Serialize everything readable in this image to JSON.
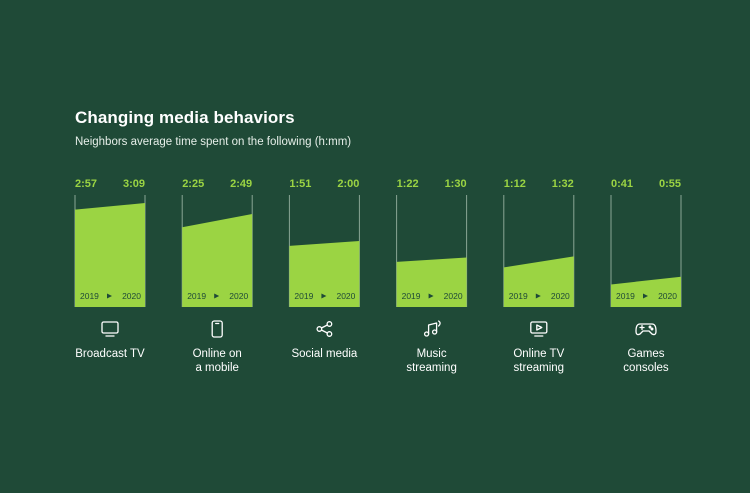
{
  "title": "Changing media behaviors",
  "subtitle": "Neighbors average time spent on the following (h:mm)",
  "colors": {
    "background": "#1f4a37",
    "accent": "#9bd443",
    "text": "#ffffff"
  },
  "chart_data": {
    "type": "area",
    "title": "Changing media behaviors",
    "subtitle": "Neighbors average time spent on the following (h:mm)",
    "unit": "h:mm",
    "x": [
      "2019",
      "2020"
    ],
    "ylim": [
      0,
      3.3
    ],
    "categories": [
      {
        "name": "Broadcast TV",
        "label_lines": [
          "Broadcast TV"
        ],
        "icon": "tv-icon",
        "v2019": "2:57",
        "v2020": "3:09",
        "h2019": 2.95,
        "h2020": 3.15
      },
      {
        "name": "Online on a mobile",
        "label_lines": [
          "Online on",
          "a mobile"
        ],
        "icon": "mobile-phone-icon",
        "v2019": "2:25",
        "v2020": "2:49",
        "h2019": 2.4167,
        "h2020": 2.8167
      },
      {
        "name": "Social media",
        "label_lines": [
          "Social media"
        ],
        "icon": "share-icon",
        "v2019": "1:51",
        "v2020": "2:00",
        "h2019": 1.85,
        "h2020": 2.0
      },
      {
        "name": "Music streaming",
        "label_lines": [
          "Music",
          "streaming"
        ],
        "icon": "music-note-icon",
        "v2019": "1:22",
        "v2020": "1:30",
        "h2019": 1.3667,
        "h2020": 1.5
      },
      {
        "name": "Online TV streaming",
        "label_lines": [
          "Online TV",
          "streaming"
        ],
        "icon": "play-screen-icon",
        "v2019": "1:12",
        "v2020": "1:32",
        "h2019": 1.2,
        "h2020": 1.5333
      },
      {
        "name": "Games consoles",
        "label_lines": [
          "Games",
          "consoles"
        ],
        "icon": "gamepad-icon",
        "v2019": "0:41",
        "v2020": "0:55",
        "h2019": 0.6833,
        "h2020": 0.9167
      }
    ],
    "grid": false
  }
}
